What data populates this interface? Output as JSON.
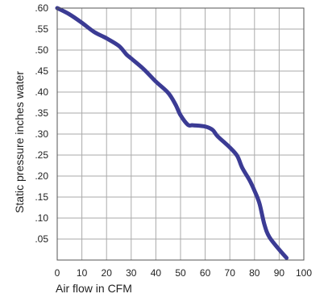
{
  "chart_data": {
    "type": "line",
    "title": "",
    "xlabel": "Air flow in CFM",
    "ylabel": "Static pressure inches water",
    "xlim": [
      0,
      100
    ],
    "ylim": [
      0,
      0.6
    ],
    "x_ticks": [
      "0",
      "10",
      "20",
      "30",
      "40",
      "50",
      "60",
      "70",
      "80",
      "90",
      "100"
    ],
    "y_ticks": [
      ".05",
      ".10",
      ".15",
      ".20",
      ".25",
      ".30",
      ".35",
      ".40",
      ".45",
      ".50",
      ".55",
      ".60"
    ],
    "grid": true,
    "colors": {
      "line": "#3b3b94",
      "grid": "#aaaaaa",
      "frame": "#555555"
    },
    "series": [
      {
        "x": [
          0,
          5,
          10,
          15,
          20,
          25,
          28,
          30,
          35,
          40,
          45,
          48,
          50,
          53,
          55,
          60,
          63,
          65,
          70,
          73,
          75,
          78,
          80,
          82,
          84,
          86,
          90,
          93
        ],
        "y": [
          0.6,
          0.585,
          0.565,
          0.543,
          0.528,
          0.51,
          0.49,
          0.48,
          0.455,
          0.425,
          0.398,
          0.37,
          0.345,
          0.322,
          0.321,
          0.318,
          0.31,
          0.295,
          0.268,
          0.248,
          0.22,
          0.19,
          0.165,
          0.135,
          0.085,
          0.055,
          0.025,
          0.005
        ]
      }
    ]
  }
}
